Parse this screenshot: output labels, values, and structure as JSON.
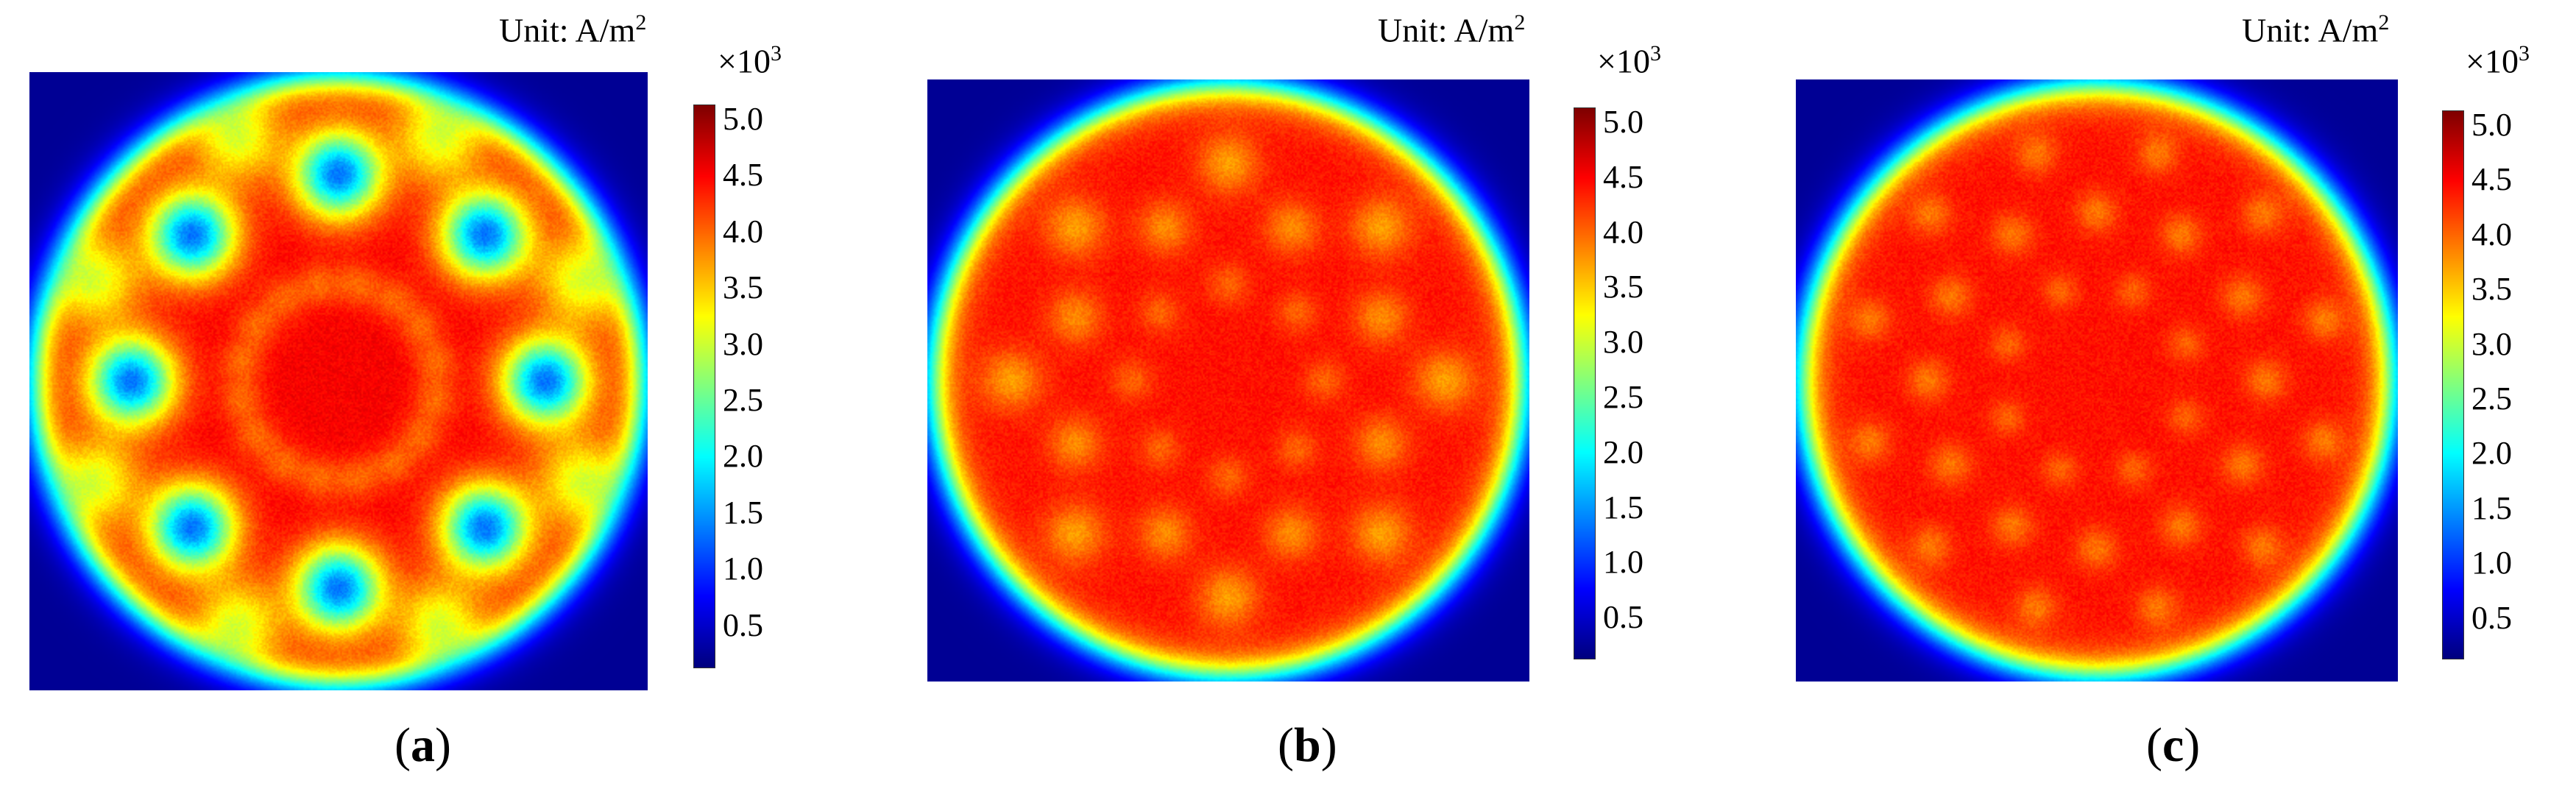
{
  "chart_data": [
    {
      "type": "heatmap",
      "panel_label": "a",
      "unit_label": "Unit: A/m",
      "unit_exp": "2",
      "colorbar_multiplier": "×10",
      "colorbar_multiplier_exp": "3",
      "colorbar_range": [
        0,
        5.0
      ],
      "colorbar_ticks": [
        "5.0",
        "4.5",
        "4.0",
        "3.5",
        "3.0",
        "2.5",
        "2.0",
        "1.5",
        "1.0",
        "0.5"
      ],
      "colormap": "jet",
      "background_value": 0.1,
      "plateau_value": 4.4,
      "hotspots": {
        "rings": [
          {
            "n": 8,
            "offset_deg": 0,
            "radius_frac": 0.67,
            "peak_value": 1.2,
            "size_frac": 0.07
          },
          {
            "n": 8,
            "offset_deg": 22.5,
            "radius_frac": 0.85,
            "peak_value": 3.0,
            "size_frac": 0.07
          },
          {
            "n": 16,
            "offset_deg": 11.25,
            "radius_frac": 0.32,
            "peak_value": 3.9,
            "size_frac": 0.035
          }
        ]
      }
    },
    {
      "type": "heatmap",
      "panel_label": "b",
      "unit_label": "Unit: A/m",
      "unit_exp": "2",
      "colorbar_multiplier": "×10",
      "colorbar_multiplier_exp": "3",
      "colorbar_range": [
        0,
        5.0
      ],
      "colorbar_ticks": [
        "5.0",
        "4.5",
        "4.0",
        "3.5",
        "3.0",
        "2.5",
        "2.0",
        "1.5",
        "1.0",
        "0.5"
      ],
      "colormap": "jet",
      "background_value": 0.1,
      "plateau_value": 4.3,
      "hotspots": {
        "rings": [
          {
            "n": 8,
            "offset_deg": 0,
            "radius_frac": 0.72,
            "peak_value": 3.6,
            "size_frac": 0.05
          },
          {
            "n": 8,
            "offset_deg": 22.5,
            "radius_frac": 0.55,
            "peak_value": 3.7,
            "size_frac": 0.045
          },
          {
            "n": 8,
            "offset_deg": 0,
            "radius_frac": 0.32,
            "peak_value": 3.9,
            "size_frac": 0.035
          }
        ]
      }
    },
    {
      "type": "heatmap",
      "panel_label": "c",
      "unit_label": "Unit: A/m",
      "unit_exp": "2",
      "colorbar_multiplier": "×10",
      "colorbar_multiplier_exp": "3",
      "colorbar_range": [
        0,
        5.0
      ],
      "colorbar_ticks": [
        "5.0",
        "4.5",
        "4.0",
        "3.5",
        "3.0",
        "2.5",
        "2.0",
        "1.5",
        "1.0",
        "0.5"
      ],
      "colormap": "jet",
      "background_value": 0.1,
      "plateau_value": 4.3,
      "hotspots": {
        "rings": [
          {
            "n": 12,
            "offset_deg": 15,
            "radius_frac": 0.78,
            "peak_value": 3.8,
            "size_frac": 0.035
          },
          {
            "n": 12,
            "offset_deg": 0,
            "radius_frac": 0.56,
            "peak_value": 3.8,
            "size_frac": 0.035
          },
          {
            "n": 8,
            "offset_deg": 22.5,
            "radius_frac": 0.32,
            "peak_value": 3.9,
            "size_frac": 0.03
          }
        ]
      }
    }
  ]
}
